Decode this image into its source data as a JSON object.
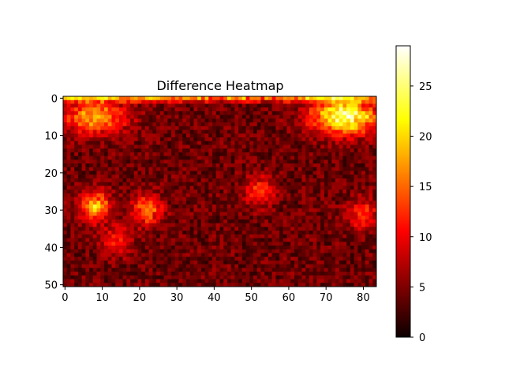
{
  "chart_data": {
    "type": "heatmap",
    "title": "Difference Heatmap",
    "xlabel": "",
    "ylabel": "",
    "rows": 51,
    "cols": 84,
    "colormap": "hot",
    "vmin": 0,
    "vmax": 29,
    "x_ticks": [
      0,
      10,
      20,
      30,
      40,
      50,
      60,
      70,
      80
    ],
    "y_ticks": [
      0,
      10,
      20,
      30,
      40,
      50
    ],
    "colorbar_ticks": [
      0,
      5,
      10,
      15,
      20,
      25
    ],
    "hotspots": [
      {
        "x": 75,
        "y": 5,
        "value": 28,
        "note": "top-right bright region"
      },
      {
        "x": 8,
        "y": 5,
        "value": 18,
        "note": "top-left warm region"
      },
      {
        "x": 8,
        "y": 29,
        "value": 20
      },
      {
        "x": 22,
        "y": 30,
        "value": 16
      },
      {
        "x": 52,
        "y": 25,
        "value": 13
      },
      {
        "x": 80,
        "y": 31,
        "value": 13
      },
      {
        "x": 14,
        "y": 38,
        "value": 12
      }
    ]
  }
}
